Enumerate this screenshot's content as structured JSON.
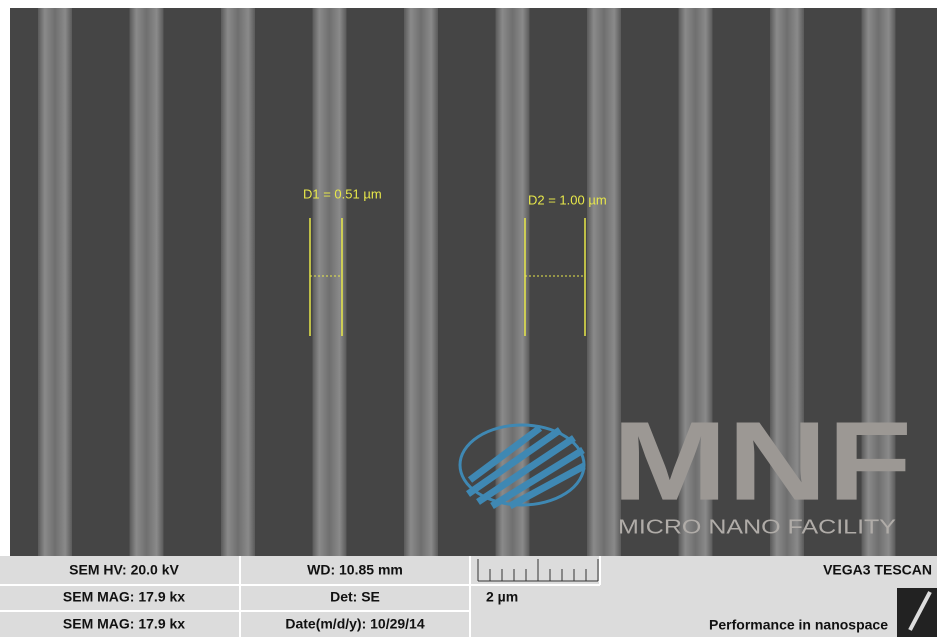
{
  "measurements": [
    "D1 = 0.51 µm",
    "D2 = 1.00 µm"
  ],
  "logo": {
    "name": "MNF",
    "subtitle": "MICRO NANO FACILITY"
  },
  "info_bar": {
    "rows": [
      [
        "SEM HV: 20.0 kV",
        "WD: 10.85 mm",
        "VEGA3 TESCAN"
      ],
      [
        "SEM MAG: 17.9 kx",
        "Det: SE",
        "2 µm"
      ],
      [
        "SEM MAG: 17.9 kx",
        "Date(m/d/y): 10/29/14",
        "Performance in nanospace"
      ]
    ]
  }
}
